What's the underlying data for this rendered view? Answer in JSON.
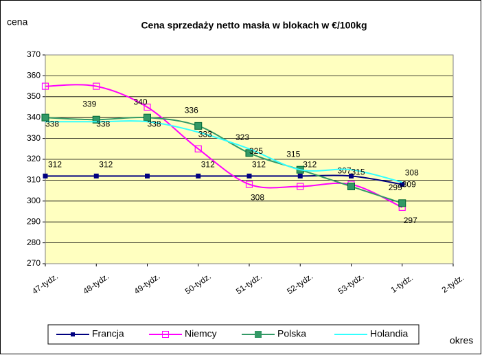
{
  "chart_data": {
    "type": "line",
    "title": "Cena sprzedaży netto masła w blokach w €/100kg",
    "y_label": "cena",
    "x_label": "okres",
    "categories": [
      "47-tydz.",
      "48-tydz.",
      "49-tydz.",
      "50-tydz.",
      "51-tydz.",
      "52-tydz.",
      "53-tydz.",
      "1-tydz.",
      "2-tydz."
    ],
    "ylim": [
      270,
      370
    ],
    "yticks": [
      270,
      280,
      290,
      300,
      310,
      320,
      330,
      340,
      350,
      360,
      370
    ],
    "grid": true,
    "legend": "bottom",
    "smooth": true,
    "series": [
      {
        "name": "Francja",
        "color": "#000080",
        "marker": "filled",
        "values": [
          312,
          312,
          312,
          312,
          312,
          312,
          312,
          308,
          null
        ],
        "value_labels": [
          "312",
          "312",
          null,
          "312",
          "312",
          "312",
          null,
          "308",
          null
        ]
      },
      {
        "name": "Niemcy",
        "color": "#ff00ff",
        "marker": "open",
        "values": [
          355,
          355,
          345,
          325,
          308,
          307,
          308,
          297,
          null
        ],
        "value_labels": [
          null,
          null,
          null,
          null,
          "308",
          null,
          null,
          "297",
          null
        ]
      },
      {
        "name": "Polska",
        "color": "#339966",
        "marker": "filled",
        "values": [
          340,
          339,
          340,
          336,
          323,
          315,
          307,
          299,
          null
        ],
        "value_labels": [
          null,
          "339",
          "340",
          "336",
          "323",
          "315",
          "307",
          "299",
          null
        ]
      },
      {
        "name": "Holandia",
        "color": "#33ffff",
        "marker": "none",
        "values": [
          338,
          338,
          338,
          333,
          325,
          315,
          315,
          309,
          null
        ],
        "value_labels": [
          "338",
          "338",
          "338",
          "333",
          "325",
          null,
          "315",
          "309",
          null
        ]
      }
    ]
  }
}
